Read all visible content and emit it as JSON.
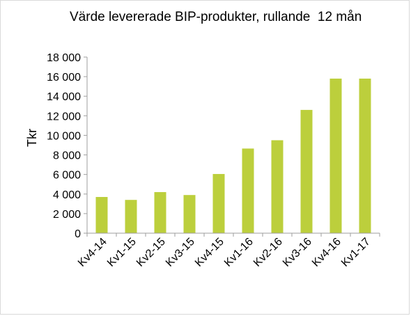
{
  "chart_data": {
    "type": "bar",
    "title": "Värde levererade BIP-produkter, rullande  12 mån",
    "xlabel": "",
    "ylabel": "Tkr",
    "categories": [
      "Kv4-14",
      "Kv1-15",
      "Kv2-15",
      "Kv3-15",
      "Kv4-15",
      "Kv1-16",
      "Kv2-16",
      "Kv3-16",
      "Kv4-16",
      "Kv1-17"
    ],
    "values": [
      3700,
      3400,
      4200,
      3900,
      6050,
      8650,
      9500,
      12600,
      15800,
      15800
    ],
    "ylim": [
      0,
      18000
    ],
    "yticks": [
      0,
      2000,
      4000,
      6000,
      8000,
      10000,
      12000,
      14000,
      16000,
      18000
    ],
    "ytick_labels": [
      "0",
      "2 000",
      "4 000",
      "6 000",
      "8 000",
      "10 000",
      "12 000",
      "14 000",
      "16 000",
      "18 000"
    ],
    "grid": false,
    "legend": "none",
    "colors": {
      "bar": "#bccf3c",
      "axis": "#9e9e9e",
      "border": "#d9d9d9"
    }
  }
}
